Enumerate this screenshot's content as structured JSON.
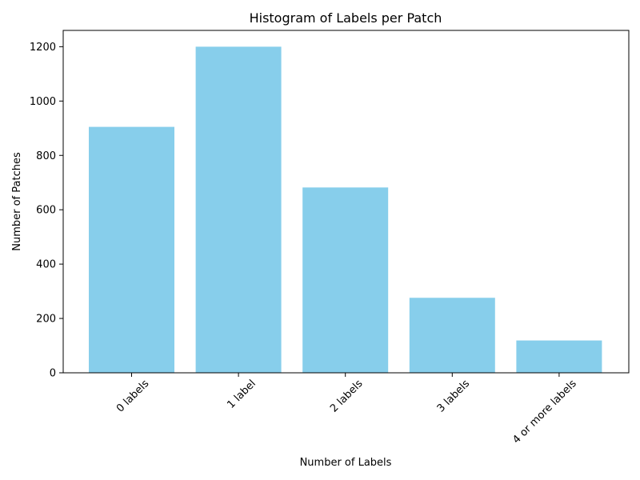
{
  "chart_data": {
    "type": "bar",
    "title": "Histogram of Labels per Patch",
    "xlabel": "Number of Labels",
    "ylabel": "Number of Patches",
    "categories": [
      "0 labels",
      "1 label",
      "2 labels",
      "3 labels",
      "4 or more labels"
    ],
    "values": [
      905,
      1200,
      682,
      276,
      119
    ],
    "ylim": [
      0,
      1260
    ],
    "yticks": [
      0,
      200,
      400,
      600,
      800,
      1000,
      1200
    ],
    "bar_color": "#87ceeb",
    "grid": false,
    "legend": false
  }
}
